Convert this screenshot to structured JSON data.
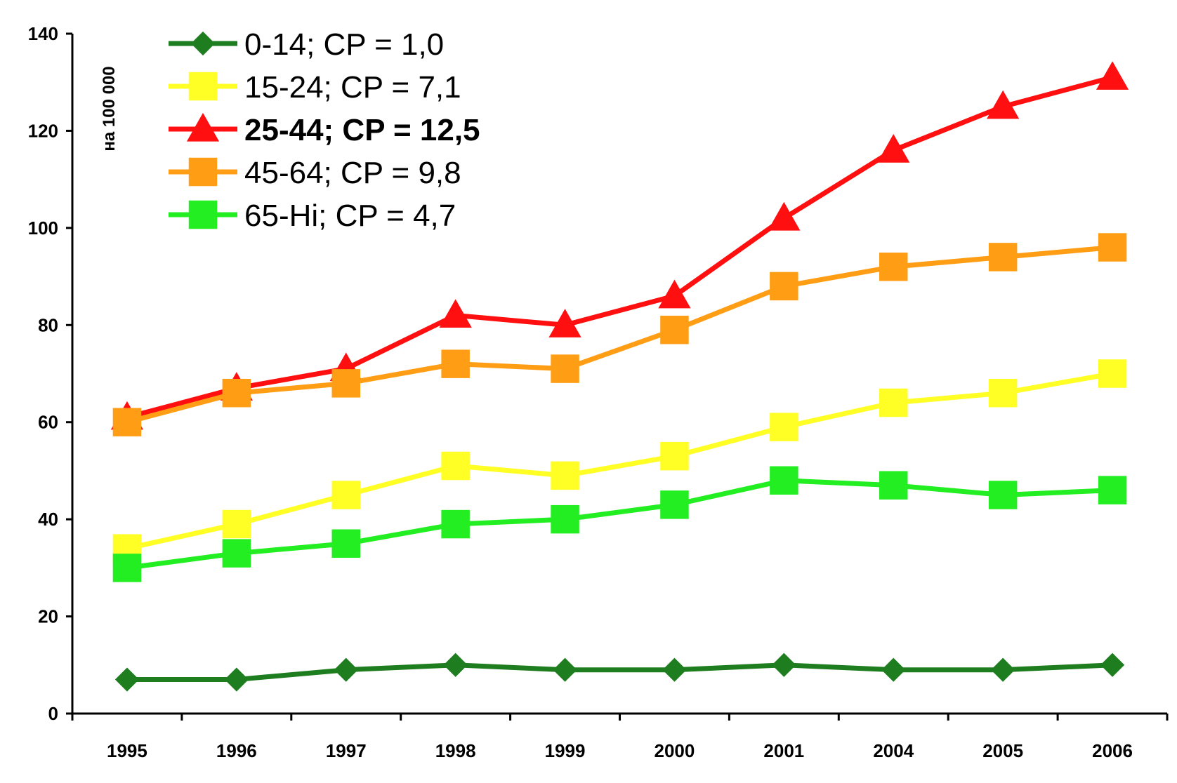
{
  "chart_data": {
    "type": "line",
    "ylabel": "на 100 000",
    "ylim": [
      0,
      140
    ],
    "yticks": [
      "0",
      "20",
      "40",
      "60",
      "80",
      "100",
      "120",
      "140"
    ],
    "categories": [
      "1995",
      "1996",
      "1997",
      "1998",
      "1999",
      "2000",
      "2001",
      "2004",
      "2005",
      "2006"
    ],
    "legend_position": "top-left",
    "grid": false,
    "series": [
      {
        "name": "0-14; CP = 1,0",
        "color": "#1e7d1e",
        "marker": "diamond",
        "bold": false,
        "values": [
          7,
          7,
          9,
          10,
          9,
          9,
          10,
          9,
          9,
          10
        ]
      },
      {
        "name": "15-24; CP = 7,1",
        "color": "#ffff26",
        "marker": "square",
        "bold": false,
        "values": [
          34,
          39,
          45,
          51,
          49,
          53,
          59,
          64,
          66,
          70
        ]
      },
      {
        "name": "25-44; CP = 12,5",
        "color": "#ff0f0f",
        "marker": "triangle",
        "bold": true,
        "values": [
          61,
          67,
          71,
          82,
          80,
          86,
          102,
          116,
          125,
          131
        ]
      },
      {
        "name": "45-64; CP = 9,8",
        "color": "#ff9e14",
        "marker": "square",
        "bold": false,
        "values": [
          60,
          66,
          68,
          72,
          71,
          79,
          88,
          92,
          94,
          96
        ]
      },
      {
        "name": "65-Hi; CP = 4,7",
        "color": "#22ee22",
        "marker": "square",
        "bold": false,
        "values": [
          30,
          33,
          35,
          39,
          40,
          43,
          48,
          47,
          45,
          46
        ]
      }
    ]
  }
}
